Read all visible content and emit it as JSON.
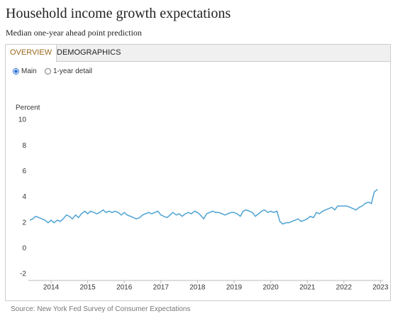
{
  "page": {
    "title": "Household income growth expectations",
    "subtitle": "Median one-year ahead point prediction",
    "tabs": [
      "OVERVIEW",
      "DEMOGRAPHICS"
    ],
    "options": [
      "Main",
      "1-year detail"
    ],
    "source": "Source: New York Fed Survey of Consumer Expectations"
  },
  "chart_data": {
    "type": "line",
    "y_label": "Percent",
    "x": [
      2013.42,
      2013.5,
      2013.58,
      2013.67,
      2013.75,
      2013.83,
      2013.92,
      2014.0,
      2014.08,
      2014.17,
      2014.25,
      2014.33,
      2014.42,
      2014.5,
      2014.58,
      2014.67,
      2014.75,
      2014.83,
      2014.92,
      2015.0,
      2015.08,
      2015.17,
      2015.25,
      2015.33,
      2015.42,
      2015.5,
      2015.58,
      2015.67,
      2015.75,
      2015.83,
      2015.92,
      2016.0,
      2016.08,
      2016.17,
      2016.25,
      2016.33,
      2016.42,
      2016.5,
      2016.58,
      2016.67,
      2016.75,
      2016.83,
      2016.92,
      2017.0,
      2017.08,
      2017.17,
      2017.25,
      2017.33,
      2017.42,
      2017.5,
      2017.58,
      2017.67,
      2017.75,
      2017.83,
      2017.92,
      2018.0,
      2018.08,
      2018.17,
      2018.25,
      2018.33,
      2018.42,
      2018.5,
      2018.58,
      2018.67,
      2018.75,
      2018.83,
      2018.92,
      2019.0,
      2019.08,
      2019.17,
      2019.25,
      2019.33,
      2019.42,
      2019.5,
      2019.58,
      2019.67,
      2019.75,
      2019.83,
      2019.92,
      2020.0,
      2020.08,
      2020.17,
      2020.25,
      2020.33,
      2020.42,
      2020.5,
      2020.58,
      2020.67,
      2020.75,
      2020.83,
      2020.92,
      2021.0,
      2021.08,
      2021.17,
      2021.25,
      2021.33,
      2021.42,
      2021.5,
      2021.58,
      2021.67,
      2021.75,
      2021.83,
      2021.92,
      2022.0,
      2022.08,
      2022.17,
      2022.25,
      2022.33,
      2022.42,
      2022.5,
      2022.58,
      2022.67,
      2022.75,
      2022.83,
      2022.92
    ],
    "series": [
      {
        "name": "Main",
        "color": "#4ea3d3",
        "values": [
          2.2,
          2.3,
          2.5,
          2.4,
          2.3,
          2.2,
          2.0,
          2.2,
          2.0,
          2.2,
          2.1,
          2.3,
          2.6,
          2.5,
          2.3,
          2.6,
          2.4,
          2.7,
          2.9,
          2.7,
          2.9,
          2.8,
          2.7,
          2.8,
          3.0,
          2.8,
          2.9,
          2.8,
          2.9,
          2.8,
          2.6,
          2.8,
          2.6,
          2.5,
          2.4,
          2.3,
          2.4,
          2.6,
          2.7,
          2.8,
          2.7,
          2.8,
          2.9,
          2.6,
          2.5,
          2.4,
          2.6,
          2.8,
          2.6,
          2.7,
          2.5,
          2.7,
          2.8,
          2.7,
          2.9,
          2.8,
          2.6,
          2.3,
          2.7,
          2.8,
          2.9,
          2.8,
          2.8,
          2.7,
          2.6,
          2.7,
          2.8,
          2.8,
          2.7,
          2.5,
          2.9,
          3.0,
          2.9,
          2.8,
          2.5,
          2.7,
          2.9,
          3.0,
          2.8,
          2.9,
          2.8,
          2.9,
          2.1,
          1.9,
          2.0,
          2.0,
          2.1,
          2.2,
          2.3,
          2.1,
          2.2,
          2.3,
          2.5,
          2.4,
          2.8,
          2.7,
          2.9,
          3.0,
          3.1,
          3.2,
          3.0,
          3.3,
          3.3,
          3.3,
          3.3,
          3.2,
          3.1,
          3.0,
          3.2,
          3.3,
          3.5,
          3.6,
          3.5,
          4.4,
          4.6
        ]
      }
    ],
    "xlim": [
      2013.38,
      2023.07
    ],
    "xticks": [
      2014,
      2015,
      2016,
      2017,
      2018,
      2019,
      2020,
      2021,
      2022,
      2023
    ],
    "ylim": [
      -2.5,
      10.5
    ],
    "yticks": [
      10,
      8,
      6,
      4,
      2,
      0,
      -2
    ],
    "grid": false
  }
}
